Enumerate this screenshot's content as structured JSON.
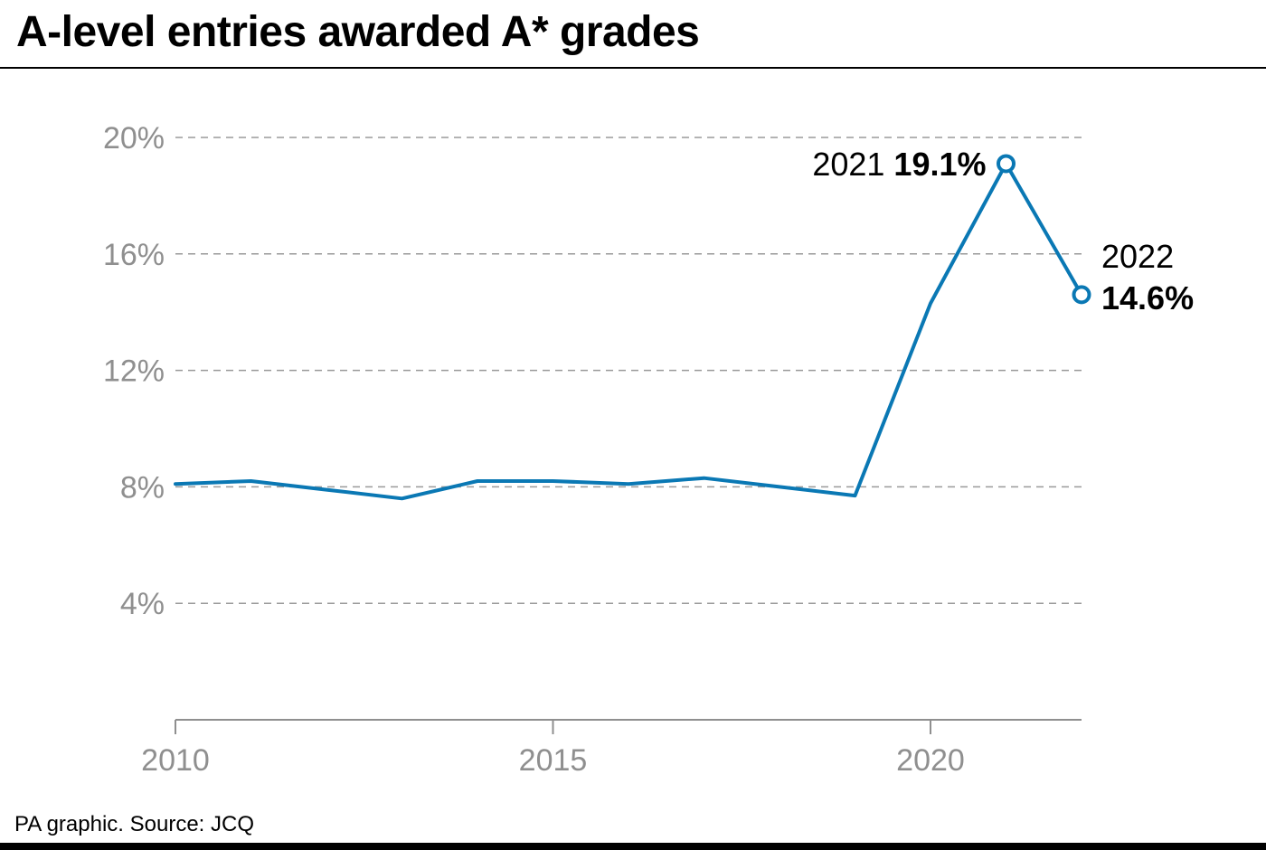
{
  "title": "A-level entries awarded A* grades",
  "source": "PA graphic. Source: JCQ",
  "colors": {
    "line": "#0a78b4",
    "axis_text": "#8f8f8f",
    "grid": "#9a9a9a",
    "text": "#000000"
  },
  "chart_data": {
    "type": "line",
    "title": "A-level entries awarded A* grades",
    "xlabel": "",
    "ylabel": "",
    "x": [
      2010,
      2011,
      2012,
      2013,
      2014,
      2015,
      2016,
      2017,
      2018,
      2019,
      2020,
      2021,
      2022
    ],
    "values": [
      8.1,
      8.2,
      7.9,
      7.6,
      8.2,
      8.2,
      8.1,
      8.3,
      8.0,
      7.7,
      14.3,
      19.1,
      14.6
    ],
    "xlim": [
      2010,
      2022
    ],
    "ylim": [
      0,
      20
    ],
    "yticks": [
      4,
      8,
      12,
      16,
      20
    ],
    "ytick_labels": [
      "4%",
      "8%",
      "12%",
      "16%",
      "20%"
    ],
    "xticks": [
      2010,
      2015,
      2020
    ],
    "xtick_labels": [
      "2010",
      "2015",
      "2020"
    ],
    "grid": "horizontal dashed",
    "annotations": [
      {
        "year_label": "2021",
        "value_label": "19.1%"
      },
      {
        "year_label": "2022",
        "value_label": "14.6%"
      }
    ]
  }
}
